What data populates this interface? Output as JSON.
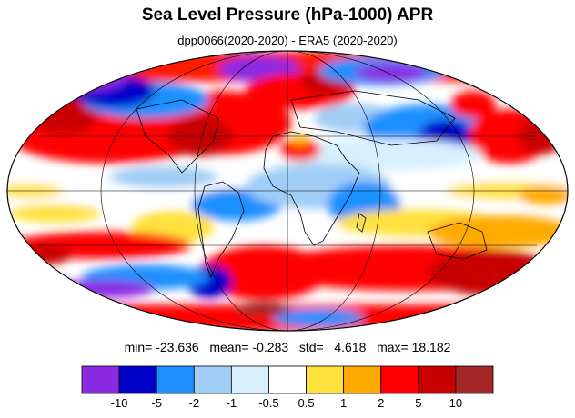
{
  "title": "Sea Level Pressure (hPa-1000) APR",
  "subtitle": "dpp0066(2020-2020) - ERA5 (2020-2020)",
  "stats": {
    "min_label": "min=",
    "min": "-23.636",
    "mean_label": "mean=",
    "mean": "-0.283",
    "std_label": "std=",
    "std": "4.618",
    "max_label": "max=",
    "max": "18.182"
  },
  "colorbar": {
    "colors": [
      "#8a2be2",
      "#0000c8",
      "#1e90ff",
      "#a0cdf5",
      "#d7f0ff",
      "#ffffff",
      "#ffe13c",
      "#ffaa00",
      "#ff0000",
      "#c80000",
      "#a52828"
    ],
    "labels": [
      "-10",
      "-5",
      "-2",
      "-1",
      "-0.5",
      "0.5",
      "1",
      "2",
      "5",
      "10"
    ]
  },
  "map": {
    "projection": "mollweide",
    "field": "sea level pressure difference",
    "palette_background": "#ffffff"
  }
}
